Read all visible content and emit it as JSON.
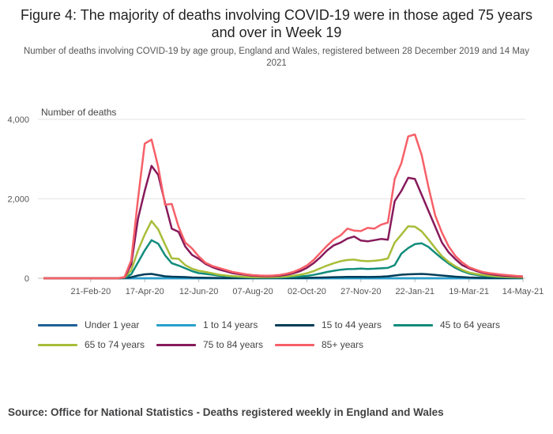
{
  "header": {
    "title": "Figure 4: The majority of deaths involving COVID-19 were in those aged 75 years and over in Week 19",
    "subtitle": "Number of deaths involving COVID-19 by age group, England and Wales, registered between 28 December 2019 and 14 May 2021"
  },
  "footer": {
    "source": "Source: Office for National Statistics - Deaths registered weekly in England and Wales"
  },
  "chart_data": {
    "type": "line",
    "ylabel": "Number of deaths",
    "ylim": [
      0,
      4000
    ],
    "yticks": [
      0,
      2000,
      4000
    ],
    "ytick_labels": [
      "0",
      "2,000",
      "4,000"
    ],
    "grid": true,
    "legend_position": "bottom",
    "x": [
      "03-Jan-20",
      "10-Jan-20",
      "17-Jan-20",
      "24-Jan-20",
      "31-Jan-20",
      "07-Feb-20",
      "14-Feb-20",
      "21-Feb-20",
      "28-Feb-20",
      "06-Mar-20",
      "13-Mar-20",
      "20-Mar-20",
      "27-Mar-20",
      "03-Apr-20",
      "10-Apr-20",
      "17-Apr-20",
      "24-Apr-20",
      "01-May-20",
      "08-May-20",
      "15-May-20",
      "22-May-20",
      "29-May-20",
      "05-Jun-20",
      "12-Jun-20",
      "19-Jun-20",
      "26-Jun-20",
      "03-Jul-20",
      "10-Jul-20",
      "17-Jul-20",
      "24-Jul-20",
      "31-Jul-20",
      "07-Aug-20",
      "14-Aug-20",
      "21-Aug-20",
      "28-Aug-20",
      "04-Sep-20",
      "11-Sep-20",
      "18-Sep-20",
      "25-Sep-20",
      "02-Oct-20",
      "09-Oct-20",
      "16-Oct-20",
      "23-Oct-20",
      "30-Oct-20",
      "06-Nov-20",
      "13-Nov-20",
      "20-Nov-20",
      "27-Nov-20",
      "04-Dec-20",
      "11-Dec-20",
      "18-Dec-20",
      "25-Dec-20",
      "01-Jan-21",
      "08-Jan-21",
      "15-Jan-21",
      "22-Jan-21",
      "29-Jan-21",
      "05-Feb-21",
      "12-Feb-21",
      "19-Feb-21",
      "26-Feb-21",
      "05-Mar-21",
      "12-Mar-21",
      "19-Mar-21",
      "26-Mar-21",
      "02-Apr-21",
      "09-Apr-21",
      "16-Apr-21",
      "23-Apr-21",
      "30-Apr-21",
      "07-May-21",
      "14-May-21"
    ],
    "xticks": [
      "21-Feb-20",
      "17-Apr-20",
      "12-Jun-20",
      "07-Aug-20",
      "02-Oct-20",
      "27-Nov-20",
      "22-Jan-21",
      "19-Mar-21",
      "14-May-21"
    ],
    "series": [
      {
        "name": "Under 1 year",
        "color": "#206095",
        "values": [
          0,
          0,
          0,
          0,
          0,
          0,
          0,
          0,
          0,
          0,
          0,
          0,
          0,
          0,
          0,
          0,
          0,
          0,
          0,
          0,
          0,
          0,
          0,
          0,
          0,
          0,
          0,
          0,
          0,
          0,
          0,
          0,
          0,
          0,
          0,
          0,
          0,
          0,
          0,
          0,
          0,
          0,
          0,
          0,
          0,
          0,
          0,
          0,
          0,
          0,
          0,
          0,
          0,
          0,
          0,
          0,
          0,
          0,
          0,
          0,
          0,
          0,
          0,
          0,
          0,
          0,
          0,
          0,
          0,
          0,
          0,
          0
        ]
      },
      {
        "name": "1 to 14 years",
        "color": "#27a0cc",
        "values": [
          0,
          0,
          0,
          0,
          0,
          0,
          0,
          0,
          0,
          0,
          0,
          0,
          0,
          0,
          0,
          0,
          0,
          0,
          0,
          0,
          0,
          0,
          0,
          0,
          0,
          0,
          0,
          0,
          0,
          0,
          0,
          0,
          0,
          0,
          0,
          0,
          0,
          0,
          0,
          0,
          0,
          0,
          0,
          0,
          0,
          0,
          0,
          0,
          0,
          0,
          0,
          0,
          0,
          0,
          0,
          0,
          0,
          0,
          0,
          0,
          0,
          0,
          0,
          0,
          0,
          0,
          0,
          0,
          0,
          0,
          0,
          0
        ]
      },
      {
        "name": "15 to 44 years",
        "color": "#003c57",
        "values": [
          0,
          0,
          0,
          0,
          0,
          0,
          0,
          0,
          0,
          0,
          0,
          0,
          5,
          25,
          70,
          100,
          110,
          80,
          50,
          40,
          35,
          30,
          20,
          15,
          12,
          10,
          8,
          5,
          5,
          4,
          3,
          3,
          3,
          3,
          3,
          3,
          4,
          5,
          7,
          10,
          13,
          18,
          22,
          27,
          30,
          33,
          35,
          33,
          32,
          35,
          40,
          50,
          70,
          90,
          100,
          105,
          110,
          100,
          85,
          70,
          55,
          40,
          30,
          20,
          15,
          10,
          8,
          7,
          6,
          5,
          4,
          4
        ]
      },
      {
        "name": "45 to 64 years",
        "color": "#118c7b",
        "values": [
          0,
          0,
          0,
          0,
          0,
          0,
          0,
          0,
          0,
          0,
          0,
          0,
          10,
          100,
          400,
          700,
          960,
          870,
          580,
          380,
          320,
          250,
          180,
          130,
          110,
          90,
          65,
          50,
          40,
          30,
          22,
          18,
          15,
          14,
          15,
          18,
          25,
          35,
          45,
          60,
          85,
          120,
          160,
          190,
          215,
          230,
          235,
          245,
          235,
          240,
          250,
          260,
          330,
          620,
          760,
          860,
          880,
          790,
          640,
          500,
          370,
          260,
          180,
          120,
          85,
          60,
          45,
          35,
          28,
          22,
          18,
          15
        ]
      },
      {
        "name": "65 to 74 years",
        "color": "#a8bd3a",
        "values": [
          0,
          0,
          0,
          0,
          0,
          0,
          0,
          0,
          0,
          0,
          0,
          0,
          15,
          200,
          700,
          1100,
          1440,
          1230,
          850,
          500,
          490,
          330,
          240,
          190,
          160,
          125,
          90,
          70,
          55,
          45,
          35,
          28,
          25,
          25,
          28,
          33,
          45,
          65,
          90,
          125,
          180,
          250,
          320,
          380,
          430,
          460,
          470,
          440,
          430,
          440,
          460,
          500,
          900,
          1100,
          1310,
          1300,
          1180,
          980,
          760,
          560,
          410,
          300,
          210,
          145,
          110,
          85,
          65,
          50,
          40,
          30,
          25,
          20
        ]
      },
      {
        "name": "75 to 84 years",
        "color": "#871a5b",
        "values": [
          0,
          0,
          0,
          0,
          0,
          0,
          0,
          0,
          0,
          0,
          0,
          0,
          20,
          350,
          1500,
          2200,
          2830,
          2600,
          1900,
          1250,
          1170,
          800,
          590,
          490,
          360,
          280,
          220,
          175,
          130,
          105,
          85,
          65,
          55,
          50,
          55,
          65,
          90,
          125,
          180,
          260,
          380,
          530,
          700,
          830,
          900,
          1000,
          1050,
          950,
          930,
          960,
          990,
          970,
          1940,
          2200,
          2530,
          2500,
          2100,
          1700,
          1300,
          900,
          650,
          480,
          330,
          250,
          190,
          140,
          110,
          85,
          65,
          55,
          45,
          40
        ]
      },
      {
        "name": "85+ years",
        "color": "#f66068",
        "values": [
          0,
          0,
          0,
          0,
          0,
          0,
          0,
          0,
          0,
          0,
          0,
          0,
          30,
          450,
          2000,
          3390,
          3490,
          2800,
          1850,
          1870,
          1300,
          900,
          750,
          550,
          390,
          310,
          260,
          210,
          160,
          130,
          100,
          80,
          70,
          65,
          70,
          85,
          115,
          160,
          230,
          320,
          460,
          640,
          820,
          980,
          1080,
          1250,
          1200,
          1190,
          1270,
          1250,
          1350,
          1400,
          2500,
          2900,
          3570,
          3620,
          3100,
          2300,
          1580,
          1150,
          800,
          560,
          400,
          280,
          215,
          160,
          130,
          110,
          90,
          75,
          60,
          50
        ]
      }
    ]
  }
}
